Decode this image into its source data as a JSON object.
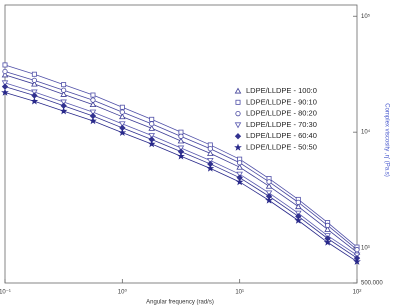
{
  "chart_data": {
    "type": "line",
    "xlabel": "Angular frequency    (rad/s)",
    "ylabel": "Complex viscosity ,η' (Pa.s)",
    "x": [
      0.1,
      0.178,
      0.316,
      0.562,
      1,
      1.78,
      3.16,
      5.62,
      10,
      17.8,
      31.6,
      56.2,
      100
    ],
    "xlog": true,
    "ylog": true,
    "y_axis_side": "right",
    "grid": false,
    "legend": "right",
    "xlim": [
      0.1,
      100
    ],
    "xticks": [
      {
        "value": 0.1,
        "label": "10⁻¹"
      },
      {
        "value": 1,
        "label": "10⁰"
      },
      {
        "value": 10,
        "label": "10¹"
      },
      {
        "value": 100,
        "label": "10²"
      }
    ],
    "ylim": [
      500,
      125000
    ],
    "yticks": [
      {
        "value": 500,
        "label": "500.000"
      },
      {
        "value": 1000,
        "label": "10³"
      },
      {
        "value": 10000,
        "label": "10⁴"
      },
      {
        "value": 100000,
        "label": "10⁵"
      }
    ],
    "series": [
      {
        "name": "LDPE/LLDPE - 100:0",
        "color": "#3c3c96",
        "marker": "triangle",
        "filled": false,
        "values": [
          31200,
          26000,
          21200,
          17300,
          13600,
          10800,
          8400,
          6560,
          4990,
          3420,
          2280,
          1450,
          920
        ]
      },
      {
        "name": "LDPE/LLDPE - 90:10",
        "color": "#5050a8",
        "marker": "square",
        "filled": false,
        "values": [
          38000,
          31600,
          25700,
          20900,
          16400,
          12900,
          10000,
          7760,
          5850,
          3980,
          2630,
          1660,
          1020
        ]
      },
      {
        "name": "LDPE/LLDPE - 80:20",
        "color": "#4646a0",
        "marker": "circle",
        "filled": false,
        "values": [
          33400,
          28000,
          23000,
          18900,
          14900,
          11800,
          9200,
          7200,
          5450,
          3730,
          2480,
          1570,
          970
        ]
      },
      {
        "name": "LDPE/LLDPE - 70:30",
        "color": "#5a5ab0",
        "marker": "tridown",
        "filled": false,
        "values": [
          26600,
          22200,
          18200,
          14900,
          11800,
          9350,
          7300,
          5700,
          4340,
          2990,
          2000,
          1280,
          870
        ]
      },
      {
        "name": "LDPE/LLDPE - 60:40",
        "color": "#323290",
        "marker": "diamond",
        "filled": true,
        "values": [
          24700,
          20700,
          16900,
          13800,
          10900,
          8650,
          6800,
          5320,
          4050,
          2800,
          1880,
          1210,
          820
        ]
      },
      {
        "name": "LDPE/LLDPE - 50:50",
        "color": "#28288a",
        "marker": "star",
        "filled": true,
        "values": [
          22000,
          18500,
          15200,
          12500,
          9900,
          7900,
          6200,
          4870,
          3720,
          2580,
          1730,
          1120,
          765
        ]
      }
    ]
  }
}
